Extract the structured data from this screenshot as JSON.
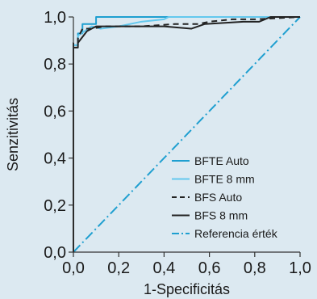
{
  "chart_data": {
    "type": "line",
    "title": "",
    "xlabel": "1-Specificitás",
    "ylabel": "Senzitivitás",
    "xlim": [
      0,
      1
    ],
    "ylim": [
      0,
      1
    ],
    "xticks": [
      "0,0",
      "0,2",
      "0,4",
      "0,6",
      "0,8",
      "1,0"
    ],
    "yticks": [
      "0,0",
      "0,2",
      "0,4",
      "0,6",
      "0,8",
      "1,0"
    ],
    "grid": false,
    "legend_position": "bottom-right",
    "series": [
      {
        "name": "BFTE Auto",
        "color": "#1f9fd0",
        "dash": "solid",
        "x": [
          0,
          0,
          0.02,
          0.02,
          0.04,
          0.04,
          0.1,
          0.1,
          1
        ],
        "y": [
          0,
          0.88,
          0.88,
          0.93,
          0.93,
          0.97,
          0.97,
          1,
          1
        ]
      },
      {
        "name": "BFTE 8 mm",
        "color": "#63c8ee",
        "dash": "solid",
        "x": [
          0,
          0,
          0.02,
          0.02,
          0.05,
          0.08,
          0.12,
          0.2,
          0.3,
          0.4,
          0.42,
          0.5,
          0.7,
          1
        ],
        "y": [
          0,
          0.88,
          0.88,
          0.92,
          0.94,
          0.96,
          0.95,
          0.96,
          0.98,
          0.99,
          1,
          1,
          1,
          1
        ]
      },
      {
        "name": "BFS Auto",
        "color": "#222222",
        "dash": "dashed",
        "x": [
          0,
          0,
          0.02,
          0.02,
          0.04,
          0.08,
          0.14,
          0.3,
          0.45,
          0.55,
          0.6,
          0.7,
          0.8,
          1
        ],
        "y": [
          0,
          0.89,
          0.89,
          0.91,
          0.95,
          0.95,
          0.96,
          0.96,
          0.97,
          0.97,
          0.98,
          0.99,
          0.99,
          1
        ]
      },
      {
        "name": "BFS 8 mm",
        "color": "#222222",
        "dash": "solid",
        "x": [
          0,
          0,
          0.02,
          0.02,
          0.06,
          0.1,
          0.2,
          0.3,
          0.4,
          0.52,
          0.58,
          0.75,
          0.82,
          0.87,
          1
        ],
        "y": [
          0,
          0.87,
          0.87,
          0.89,
          0.94,
          0.96,
          0.96,
          0.96,
          0.96,
          0.95,
          0.97,
          0.98,
          0.98,
          1,
          1
        ]
      },
      {
        "name": "Referencia érték",
        "color": "#1f9fd0",
        "dash": "dashdot",
        "x": [
          0,
          1
        ],
        "y": [
          0,
          1
        ]
      }
    ]
  }
}
